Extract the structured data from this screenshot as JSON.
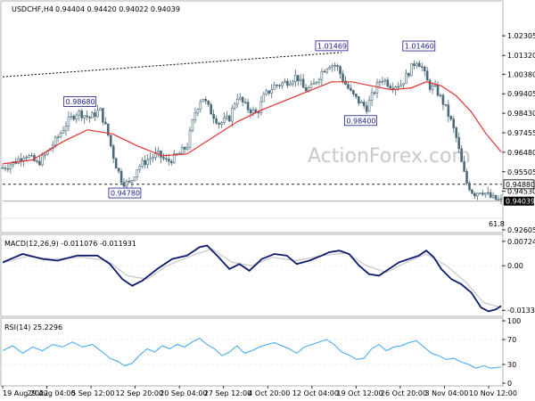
{
  "chart_data": [
    {
      "type": "candlestick",
      "title": "USDCHF,H4",
      "ohlc_text": "0.94404 0.94420 0.94022 0.94039",
      "watermark": "ActionForex.com",
      "ylim": [
        0.926,
        1.032
      ],
      "y_ticks": [
        "1.02305",
        "1.01320",
        "1.00380",
        "0.99405",
        "0.98430",
        "0.97455",
        "0.96480",
        "0.95505",
        "0.94530",
        "0.92605"
      ],
      "y_tick_values": [
        1.02305,
        1.0132,
        1.0038,
        0.99405,
        0.9843,
        0.97455,
        0.9648,
        0.95505,
        0.9453,
        0.92605
      ],
      "x_ticks": [
        "19 Aug 2022",
        "29 Aug 04:00",
        "5 Sep 12:00",
        "12 Sep 20:00",
        "20 Sep 04:00",
        "27 Sep 12:00",
        "4 Oct 20:00",
        "12 Oct 04:00",
        "19 Oct 12:00",
        "26 Oct 20:00",
        "3 Nov 04:00",
        "10 Nov 12:00"
      ],
      "last_price": "0.94039",
      "last_value": 0.94039,
      "level_label": "0.94880",
      "level_value": 0.9488,
      "fib_label": "61.8",
      "fib_value": 0.9318,
      "price_labels": [
        {
          "text": "0.98680",
          "value": 0.9868,
          "t": 0.155
        },
        {
          "text": "0.94780",
          "value": 0.9478,
          "t": 0.245
        },
        {
          "text": "1.01469",
          "value": 1.01469,
          "t": 0.66
        },
        {
          "text": "0.98400",
          "value": 0.984,
          "t": 0.718
        },
        {
          "text": "1.01460",
          "value": 1.0146,
          "t": 0.835
        }
      ],
      "trendline": {
        "from": [
          0.0,
          1.0025
        ],
        "to": [
          0.68,
          1.0147
        ]
      },
      "price_path": [
        [
          0.0,
          0.957
        ],
        [
          0.025,
          0.96
        ],
        [
          0.045,
          0.964
        ],
        [
          0.07,
          0.959
        ],
        [
          0.09,
          0.965
        ],
        [
          0.11,
          0.972
        ],
        [
          0.13,
          0.98
        ],
        [
          0.15,
          0.985
        ],
        [
          0.175,
          0.982
        ],
        [
          0.195,
          0.986
        ],
        [
          0.21,
          0.975
        ],
        [
          0.225,
          0.96
        ],
        [
          0.24,
          0.95
        ],
        [
          0.255,
          0.949
        ],
        [
          0.27,
          0.957
        ],
        [
          0.29,
          0.961
        ],
        [
          0.31,
          0.964
        ],
        [
          0.33,
          0.96
        ],
        [
          0.35,
          0.963
        ],
        [
          0.37,
          0.968
        ],
        [
          0.385,
          0.984
        ],
        [
          0.4,
          0.993
        ],
        [
          0.415,
          0.986
        ],
        [
          0.435,
          0.979
        ],
        [
          0.455,
          0.982
        ],
        [
          0.47,
          0.993
        ],
        [
          0.49,
          0.987
        ],
        [
          0.51,
          0.984
        ],
        [
          0.525,
          0.993
        ],
        [
          0.545,
          0.998
        ],
        [
          0.57,
          1.0
        ],
        [
          0.59,
          1.003
        ],
        [
          0.605,
          0.996
        ],
        [
          0.62,
          0.997
        ],
        [
          0.64,
          1.005
        ],
        [
          0.655,
          1.009
        ],
        [
          0.67,
          1.008
        ],
        [
          0.685,
          1.0
        ],
        [
          0.7,
          0.994
        ],
        [
          0.715,
          0.99
        ],
        [
          0.73,
          0.987
        ],
        [
          0.745,
          0.995
        ],
        [
          0.76,
          1.002
        ],
        [
          0.78,
          0.998
        ],
        [
          0.8,
          0.999
        ],
        [
          0.815,
          1.005
        ],
        [
          0.83,
          1.011
        ],
        [
          0.84,
          1.008
        ],
        [
          0.855,
          0.998
        ],
        [
          0.87,
          0.996
        ],
        [
          0.885,
          0.989
        ],
        [
          0.9,
          0.98
        ],
        [
          0.91,
          0.972
        ],
        [
          0.92,
          0.96
        ],
        [
          0.93,
          0.95
        ],
        [
          0.945,
          0.944
        ],
        [
          0.96,
          0.946
        ],
        [
          0.98,
          0.942
        ],
        [
          1.0,
          0.9404
        ]
      ],
      "ma_path": [
        [
          0.0,
          0.959
        ],
        [
          0.06,
          0.961
        ],
        [
          0.12,
          0.97
        ],
        [
          0.17,
          0.976
        ],
        [
          0.22,
          0.974
        ],
        [
          0.27,
          0.968
        ],
        [
          0.32,
          0.963
        ],
        [
          0.37,
          0.964
        ],
        [
          0.42,
          0.972
        ],
        [
          0.47,
          0.98
        ],
        [
          0.52,
          0.986
        ],
        [
          0.57,
          0.991
        ],
        [
          0.62,
          0.996
        ],
        [
          0.66,
          1.0
        ],
        [
          0.7,
          1.0
        ],
        [
          0.74,
          0.998
        ],
        [
          0.78,
          0.996
        ],
        [
          0.82,
          0.997
        ],
        [
          0.85,
          1.0
        ],
        [
          0.88,
          0.998
        ],
        [
          0.91,
          0.993
        ],
        [
          0.94,
          0.985
        ],
        [
          0.97,
          0.974
        ],
        [
          1.0,
          0.965
        ]
      ]
    },
    {
      "type": "line",
      "title": "MACD(12,26,9) -0.011076 -0.011931",
      "ylim": [
        -0.0143,
        0.008
      ],
      "y_ticks": [
        "0.00724",
        "0.00",
        "-0.0133"
      ],
      "y_tick_values": [
        0.00724,
        0.0,
        -0.0133
      ],
      "macd_path": [
        [
          0.0,
          0.001
        ],
        [
          0.04,
          0.0035
        ],
        [
          0.08,
          0.002
        ],
        [
          0.11,
          0.0015
        ],
        [
          0.15,
          0.003
        ],
        [
          0.19,
          0.003
        ],
        [
          0.215,
          0.0005
        ],
        [
          0.24,
          -0.004
        ],
        [
          0.26,
          -0.006
        ],
        [
          0.28,
          -0.0045
        ],
        [
          0.31,
          -0.001
        ],
        [
          0.34,
          0.002
        ],
        [
          0.37,
          0.003
        ],
        [
          0.395,
          0.0055
        ],
        [
          0.41,
          0.006
        ],
        [
          0.43,
          0.003
        ],
        [
          0.455,
          -0.001
        ],
        [
          0.475,
          0.0005
        ],
        [
          0.495,
          -0.0015
        ],
        [
          0.52,
          0.002
        ],
        [
          0.545,
          0.0035
        ],
        [
          0.57,
          0.003
        ],
        [
          0.59,
          0.0005
        ],
        [
          0.615,
          0.0015
        ],
        [
          0.64,
          0.003
        ],
        [
          0.655,
          0.004
        ],
        [
          0.675,
          0.0045
        ],
        [
          0.695,
          0.0035
        ],
        [
          0.715,
          0.0
        ],
        [
          0.735,
          -0.0025
        ],
        [
          0.755,
          -0.003
        ],
        [
          0.775,
          -0.001
        ],
        [
          0.795,
          0.001
        ],
        [
          0.815,
          0.002
        ],
        [
          0.835,
          0.003
        ],
        [
          0.85,
          0.0045
        ],
        [
          0.865,
          0.0025
        ],
        [
          0.88,
          -0.001
        ],
        [
          0.9,
          -0.004
        ],
        [
          0.92,
          -0.0055
        ],
        [
          0.94,
          -0.008
        ],
        [
          0.96,
          -0.0125
        ],
        [
          0.975,
          -0.0136
        ],
        [
          0.99,
          -0.013
        ],
        [
          1.0,
          -0.012
        ]
      ],
      "signal_path": [
        [
          0.0,
          0.0008
        ],
        [
          0.05,
          0.0028
        ],
        [
          0.1,
          0.002
        ],
        [
          0.16,
          0.0025
        ],
        [
          0.21,
          0.0015
        ],
        [
          0.25,
          -0.003
        ],
        [
          0.29,
          -0.004
        ],
        [
          0.33,
          0.0
        ],
        [
          0.38,
          0.003
        ],
        [
          0.42,
          0.005
        ],
        [
          0.46,
          0.001
        ],
        [
          0.5,
          0.0
        ],
        [
          0.54,
          0.0025
        ],
        [
          0.59,
          0.0015
        ],
        [
          0.64,
          0.003
        ],
        [
          0.69,
          0.0038
        ],
        [
          0.73,
          0.0
        ],
        [
          0.77,
          -0.002
        ],
        [
          0.81,
          0.001
        ],
        [
          0.85,
          0.0035
        ],
        [
          0.89,
          0.0
        ],
        [
          0.93,
          -0.005
        ],
        [
          0.965,
          -0.011
        ],
        [
          1.0,
          -0.0125
        ]
      ]
    },
    {
      "type": "line",
      "title": "RSI(14) 25.2296",
      "ylim": [
        0,
        100
      ],
      "y_ticks": [
        "100",
        "70",
        "30",
        "0"
      ],
      "y_tick_values": [
        100,
        70,
        30,
        0
      ],
      "levels": [
        70,
        30
      ],
      "rsi_path": [
        [
          0.0,
          52
        ],
        [
          0.02,
          60
        ],
        [
          0.04,
          48
        ],
        [
          0.06,
          58
        ],
        [
          0.08,
          52
        ],
        [
          0.1,
          62
        ],
        [
          0.12,
          58
        ],
        [
          0.14,
          66
        ],
        [
          0.16,
          58
        ],
        [
          0.18,
          62
        ],
        [
          0.2,
          50
        ],
        [
          0.215,
          40
        ],
        [
          0.23,
          35
        ],
        [
          0.245,
          28
        ],
        [
          0.26,
          32
        ],
        [
          0.275,
          45
        ],
        [
          0.29,
          55
        ],
        [
          0.305,
          50
        ],
        [
          0.32,
          60
        ],
        [
          0.335,
          55
        ],
        [
          0.35,
          62
        ],
        [
          0.365,
          58
        ],
        [
          0.38,
          66
        ],
        [
          0.395,
          72
        ],
        [
          0.41,
          62
        ],
        [
          0.425,
          55
        ],
        [
          0.44,
          44
        ],
        [
          0.455,
          50
        ],
        [
          0.47,
          60
        ],
        [
          0.485,
          48
        ],
        [
          0.5,
          52
        ],
        [
          0.515,
          58
        ],
        [
          0.53,
          62
        ],
        [
          0.545,
          65
        ],
        [
          0.56,
          60
        ],
        [
          0.575,
          55
        ],
        [
          0.59,
          48
        ],
        [
          0.605,
          58
        ],
        [
          0.62,
          62
        ],
        [
          0.635,
          66
        ],
        [
          0.65,
          70
        ],
        [
          0.665,
          62
        ],
        [
          0.68,
          50
        ],
        [
          0.695,
          45
        ],
        [
          0.71,
          38
        ],
        [
          0.725,
          40
        ],
        [
          0.74,
          55
        ],
        [
          0.755,
          62
        ],
        [
          0.77,
          52
        ],
        [
          0.785,
          58
        ],
        [
          0.8,
          60
        ],
        [
          0.815,
          65
        ],
        [
          0.83,
          68
        ],
        [
          0.845,
          58
        ],
        [
          0.86,
          48
        ],
        [
          0.875,
          44
        ],
        [
          0.89,
          38
        ],
        [
          0.905,
          40
        ],
        [
          0.92,
          34
        ],
        [
          0.935,
          30
        ],
        [
          0.95,
          24
        ],
        [
          0.965,
          28
        ],
        [
          0.98,
          24
        ],
        [
          1.0,
          26
        ]
      ]
    }
  ],
  "colors": {
    "candle_up": "#4a6a7a",
    "candle_down": "#4a6a7a",
    "ma": "#e03030",
    "macd": "#0d1a6e",
    "signal": "#c7c7c7",
    "rsi": "#3aa5f0",
    "grid": "#d8d8d8",
    "label_box_border": "#1a1a8c",
    "watermark": "#c9c9c9"
  }
}
